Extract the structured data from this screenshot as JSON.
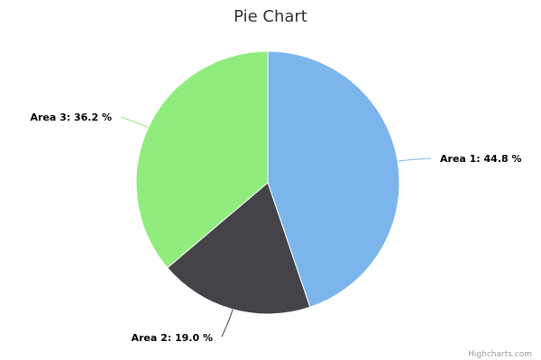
{
  "chart_data": {
    "type": "pie",
    "title": "Pie Chart",
    "slices": [
      {
        "name": "Area 1",
        "value": 44.8,
        "label": "Area 1: 44.8 %",
        "color": "#7cb5ec"
      },
      {
        "name": "Area 2",
        "value": 19.0,
        "label": "Area 2: 19.0 %",
        "color": "#434348"
      },
      {
        "name": "Area 3",
        "value": 36.2,
        "label": "Area 3: 36.2 %",
        "color": "#90ed7d"
      }
    ],
    "start_angle": "top",
    "direction": "clockwise"
  },
  "credits": {
    "text": "Highcharts.com"
  }
}
